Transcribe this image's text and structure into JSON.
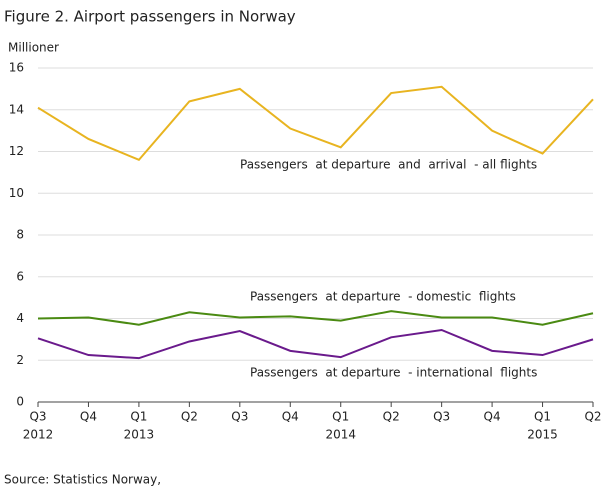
{
  "chart_data": {
    "type": "line",
    "title": "Figure 2. Airport passengers in Norway",
    "y_label": "Millioner",
    "categories": [
      "Q3",
      "Q4",
      "Q1",
      "Q2",
      "Q3",
      "Q4",
      "Q1",
      "Q2",
      "Q3",
      "Q4",
      "Q1",
      "Q2"
    ],
    "category_years": [
      "2012",
      null,
      "2013",
      null,
      null,
      null,
      "2014",
      null,
      null,
      null,
      "2015",
      null
    ],
    "series": [
      {
        "name": "Passengers  at departure  and  arrival  - all flights",
        "color": "#e8b420",
        "values": [
          14.1,
          12.6,
          11.6,
          14.4,
          15.0,
          13.1,
          12.2,
          14.8,
          15.1,
          13.0,
          11.9,
          14.5
        ]
      },
      {
        "name": "Passengers  at departure  - domestic  flights",
        "color": "#4a8a12",
        "values": [
          4.0,
          4.05,
          3.7,
          4.3,
          4.05,
          4.1,
          3.9,
          4.35,
          4.05,
          4.05,
          3.7,
          4.25
        ]
      },
      {
        "name": "Passengers  at departure  - international  flights",
        "color": "#6a1a8c",
        "values": [
          3.05,
          2.25,
          2.1,
          2.9,
          3.4,
          2.45,
          2.15,
          3.1,
          3.45,
          2.45,
          2.25,
          3.0
        ]
      }
    ],
    "ylim": [
      0,
      16
    ],
    "yticks": [
      0,
      2,
      4,
      6,
      8,
      10,
      12,
      14,
      16
    ],
    "grid": true,
    "source": "Source: Statistics Norway,"
  }
}
